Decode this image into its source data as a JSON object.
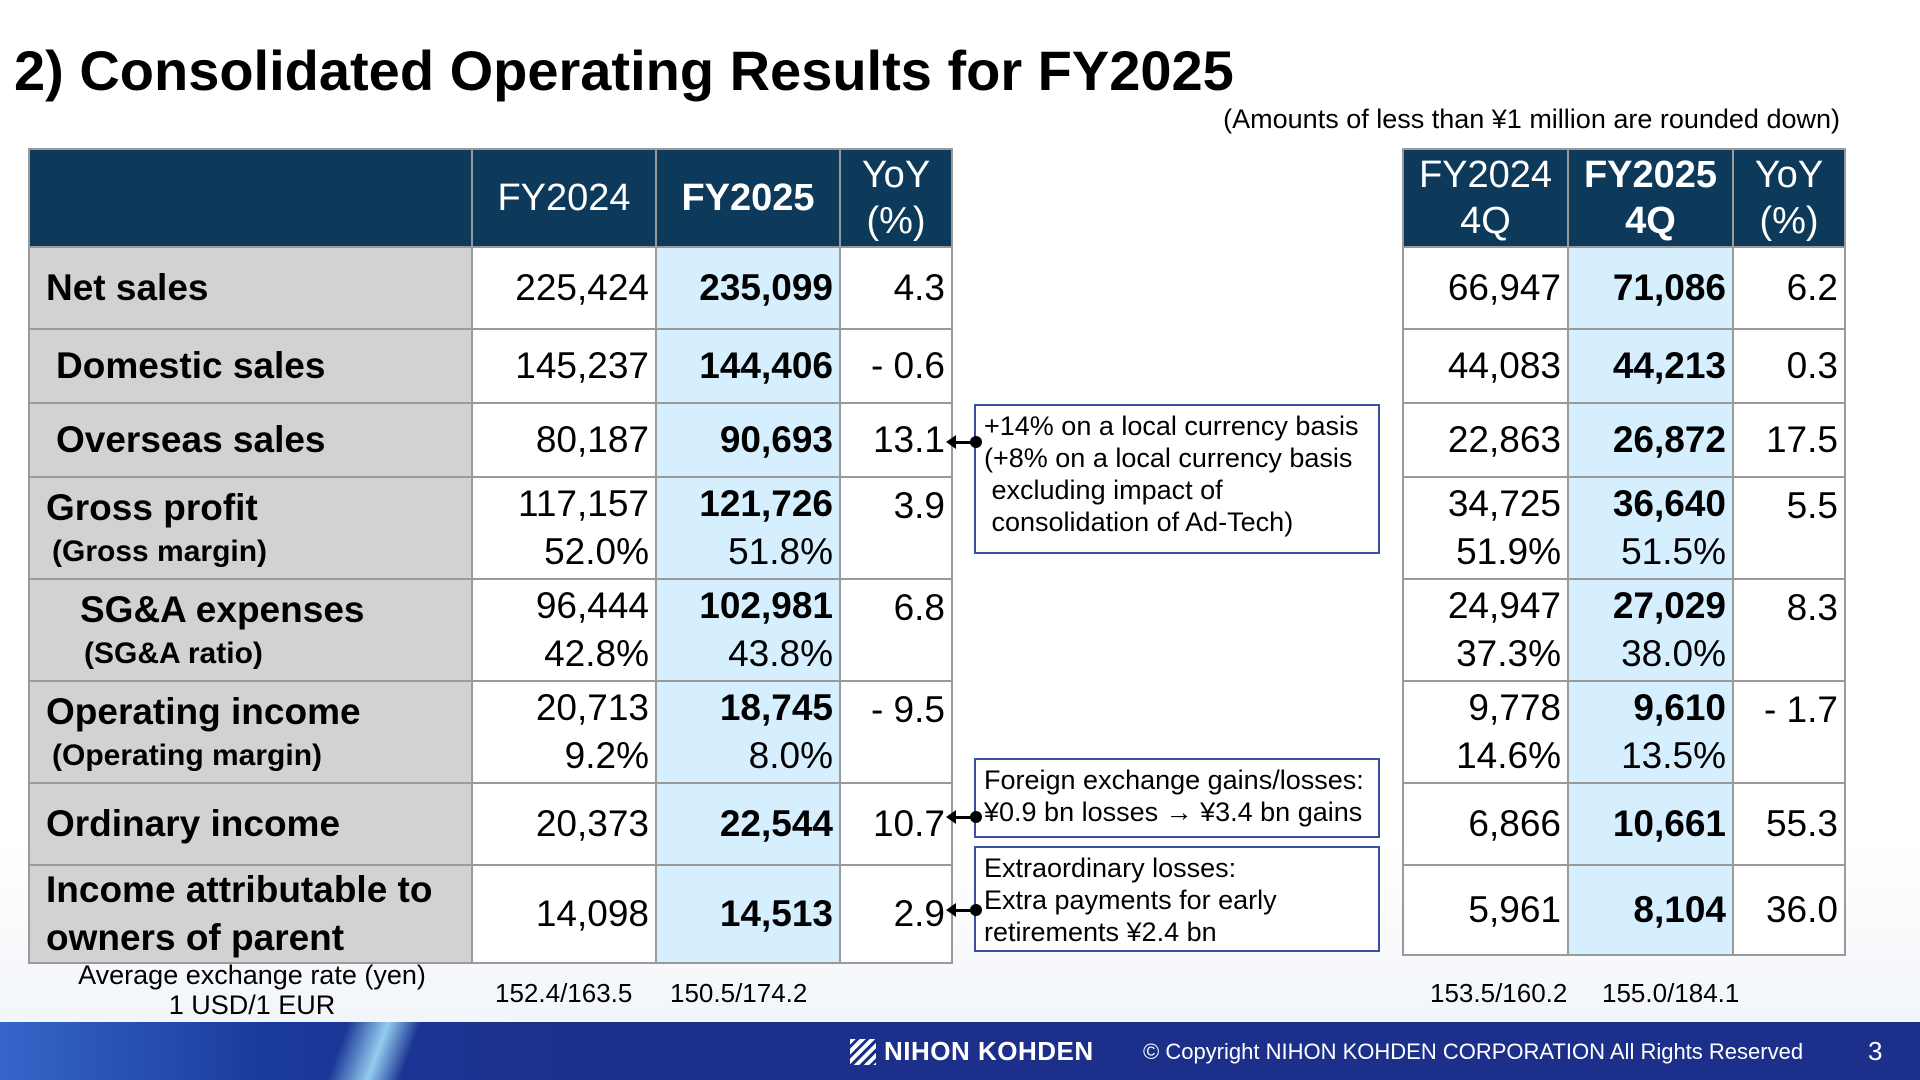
{
  "title": "2) Consolidated Operating Results for FY2025",
  "note": "(Amounts of less than ¥1 million are rounded down)",
  "main_table": {
    "headers": {
      "col1": "FY2024",
      "col2": "FY2025",
      "col3_line1": "YoY",
      "col3_line2": "(%)"
    },
    "rows": [
      {
        "label": "Net sales",
        "fy2024": "225,424",
        "fy2025": "235,099",
        "yoy": "4.3"
      },
      {
        "label": "Domestic sales",
        "fy2024": "145,237",
        "fy2025": "144,406",
        "yoy": "- 0.6"
      },
      {
        "label": "Overseas sales",
        "fy2024": "80,187",
        "fy2025": "90,693",
        "yoy": "13.1"
      },
      {
        "label": "Gross profit",
        "sublabel": "(Gross margin)",
        "fy2024": "117,157",
        "fy2024_pct": "52.0%",
        "fy2025": "121,726",
        "fy2025_pct": "51.8%",
        "yoy": "3.9"
      },
      {
        "label": "SG&A expenses",
        "sublabel": "(SG&A ratio)",
        "fy2024": "96,444",
        "fy2024_pct": "42.8%",
        "fy2025": "102,981",
        "fy2025_pct": "43.8%",
        "yoy": "6.8"
      },
      {
        "label": "Operating income",
        "sublabel": "(Operating margin)",
        "fy2024": "20,713",
        "fy2024_pct": "9.2%",
        "fy2025": "18,745",
        "fy2025_pct": "8.0%",
        "yoy": "- 9.5"
      },
      {
        "label": "Ordinary income",
        "fy2024": "20,373",
        "fy2025": "22,544",
        "yoy": "10.7"
      },
      {
        "label_line1": "Income attributable to",
        "label_line2": "owners of parent",
        "fy2024": "14,098",
        "fy2025": "14,513",
        "yoy": "2.9"
      }
    ]
  },
  "q4_table": {
    "headers": {
      "col1_line1": "FY2024",
      "col1_line2": "4Q",
      "col2_line1": "FY2025",
      "col2_line2": "4Q",
      "col3_line1": "YoY",
      "col3_line2": "(%)"
    },
    "rows": [
      {
        "fy2024": "66,947",
        "fy2025": "71,086",
        "yoy": "6.2"
      },
      {
        "fy2024": "44,083",
        "fy2025": "44,213",
        "yoy": "0.3"
      },
      {
        "fy2024": "22,863",
        "fy2025": "26,872",
        "yoy": "17.5"
      },
      {
        "fy2024": "34,725",
        "fy2024_pct": "51.9%",
        "fy2025": "36,640",
        "fy2025_pct": "51.5%",
        "yoy": "5.5"
      },
      {
        "fy2024": "24,947",
        "fy2024_pct": "37.3%",
        "fy2025": "27,029",
        "fy2025_pct": "38.0%",
        "yoy": "8.3"
      },
      {
        "fy2024": "9,778",
        "fy2024_pct": "14.6%",
        "fy2025": "9,610",
        "fy2025_pct": "13.5%",
        "yoy": "- 1.7"
      },
      {
        "fy2024": "6,866",
        "fy2025": "10,661",
        "yoy": "55.3"
      },
      {
        "fy2024": "5,961",
        "fy2025": "8,104",
        "yoy": "36.0"
      }
    ]
  },
  "exchange_rate": {
    "label_line1": "Average exchange rate (yen)",
    "label_line2": "1 USD/1 EUR",
    "fy2024": "152.4/163.5",
    "fy2025": "150.5/174.2",
    "fy2024_4q": "153.5/160.2",
    "fy2025_4q": "155.0/184.1"
  },
  "callouts": {
    "overseas": [
      "+14% on a local currency basis",
      "(+8% on a local currency basis",
      " excluding impact of",
      " consolidation of Ad-Tech)"
    ],
    "ordinary": [
      "Foreign exchange gains/losses:",
      "¥0.9 bn losses → ¥3.4 bn gains"
    ],
    "extraordinary": [
      "Extraordinary losses:",
      "Extra payments for early",
      "retirements ¥2.4 bn"
    ]
  },
  "footer": {
    "logo": "NIHON KOHDEN",
    "copyright": "© Copyright  NIHON KOHDEN CORPORATION  All Rights Reserved",
    "page": "3"
  },
  "colors": {
    "header_bg": "#0d3a5a",
    "label_bg": "#d2d2d2",
    "highlight_bg": "#d6efff",
    "footer_bg": "#1c2f8a",
    "callout_border": "#3a4fa0"
  }
}
